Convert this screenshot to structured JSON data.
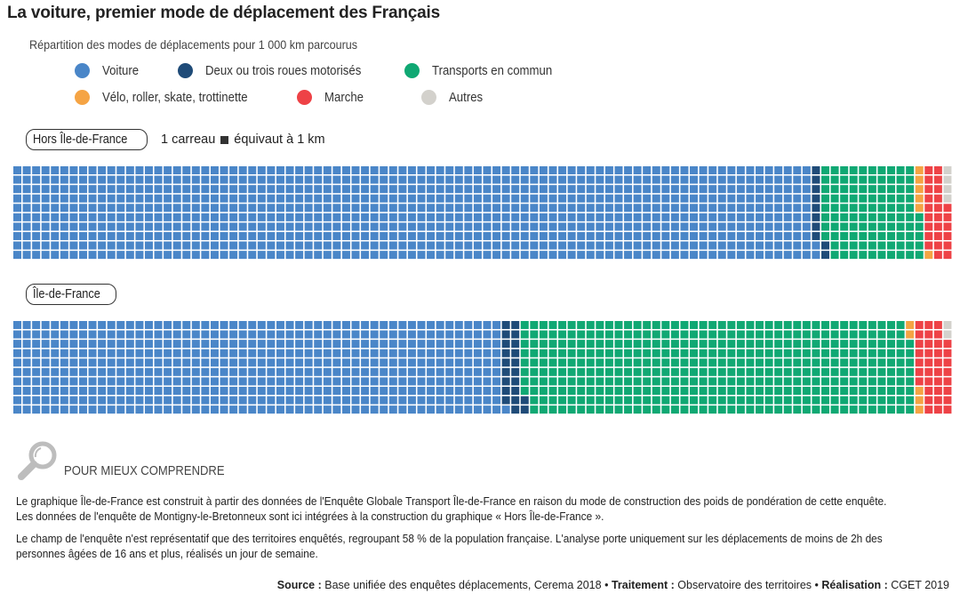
{
  "title": "La voiture, premier mode de déplacement des Français",
  "subtitle": "Répartition des modes de déplacements pour 1 000 km parcourus",
  "legend": [
    {
      "label": "Voiture",
      "color": "#4a86c8"
    },
    {
      "label": "Deux ou trois roues motorisés",
      "color": "#1f4b78"
    },
    {
      "label": "Transports en commun",
      "color": "#10a873"
    },
    {
      "label": "Vélo, roller, skate, trottinette",
      "color": "#f5a444"
    },
    {
      "label": "Marche",
      "color": "#ee4246"
    },
    {
      "label": "Autres",
      "color": "#d3d1cc"
    }
  ],
  "unit_note": {
    "before": "1 carreau",
    "after": "équivaut à 1 km"
  },
  "chart_data": [
    {
      "type": "waffle",
      "title": "Hors Île-de-France",
      "grid": {
        "rows": 10,
        "columns": 100,
        "fill": "column-wise, bottom to top"
      },
      "unit": "1 carreau = 1 km",
      "categories": [
        "Voiture",
        "Deux ou trois roues motorisés",
        "Transports en commun",
        "Vélo, roller, skate, trottinette",
        "Marche",
        "Autres"
      ],
      "values": [
        852,
        10,
        103,
        6,
        25,
        4
      ]
    },
    {
      "type": "waffle",
      "title": "Île-de-France",
      "grid": {
        "rows": 10,
        "columns": 100,
        "fill": "column-wise, bottom to top"
      },
      "unit": "1 carreau = 1 km",
      "categories": [
        "Voiture",
        "Deux ou trois roues motorisés",
        "Transports en commun",
        "Vélo, roller, skate, trottinette",
        "Marche",
        "Autres"
      ],
      "values": [
        521,
        21,
        416,
        5,
        35,
        2
      ]
    }
  ],
  "info": {
    "icon": "magnifier-icon",
    "title": "POUR MIEUX COMPRENDRE",
    "paragraphs": [
      [
        "Le graphique Île-de-France est construit à partir des données de l'Enquête Globale Transport Île-de-France en raison du mode de construction des poids de pondération de cette enquête.",
        "Les données de l'enquête de Montigny-le-Bretonneux sont ici intégrées à la construction du graphique « Hors Île-de-France »."
      ],
      [
        "Le champ de l'enquête n'est représentatif que des territoires enquêtés, regroupant 58 % de la population française. L'analyse porte uniquement sur les déplacements de moins de 2h des",
        "personnes âgées de 16 ans et plus, réalisés un jour de semaine."
      ]
    ]
  },
  "footer": {
    "source_label": "Source :",
    "source": "Base unifiée des enquêtes déplacements, Cerema 2018",
    "treatment_label": "Traitement :",
    "treatment": "Observatoire des territoires",
    "production_label": "Réalisation :",
    "production": "CGET 2019",
    "separator": "•"
  }
}
